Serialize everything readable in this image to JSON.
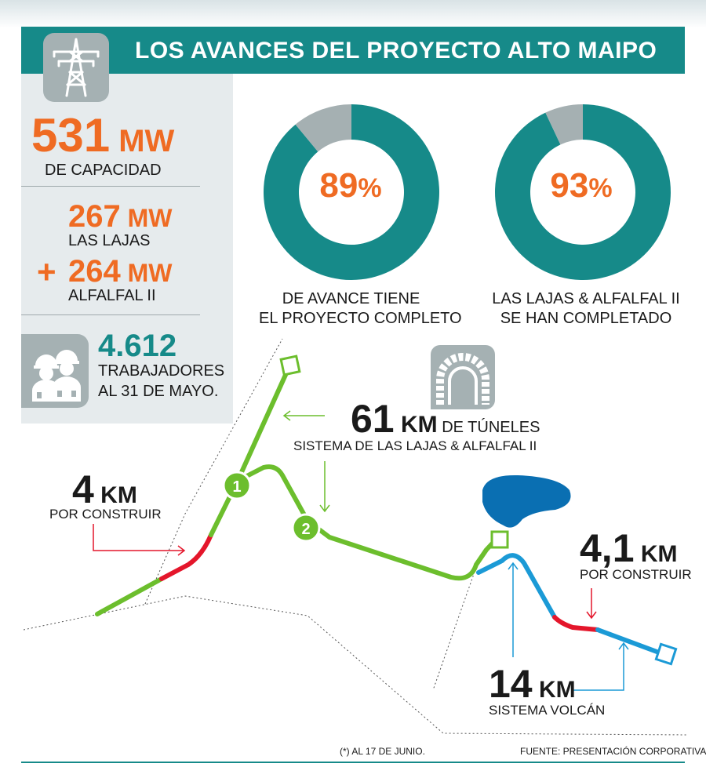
{
  "title": "LOS AVANCES DEL PROYECTO ALTO MAIPO",
  "capacity": {
    "value": "531",
    "unit": "MW",
    "label": "DE CAPACIDAD"
  },
  "las_lajas": {
    "value": "267",
    "unit": "MW",
    "label": "LAS LAJAS"
  },
  "plus_sign": "+",
  "alfalfal": {
    "value": "264",
    "unit": "MW",
    "label": "ALFALFAL II"
  },
  "workers": {
    "value": "4.612",
    "label1": "TRABAJADORES",
    "label2": "AL 31 DE MAYO."
  },
  "chart_data": [
    {
      "type": "pie",
      "values": [
        89,
        11
      ],
      "center_label": "89",
      "pct_sign": "%",
      "caption1": "DE AVANCE TIENE",
      "caption2": "EL PROYECTO COMPLETO",
      "colors": [
        "#168a89",
        "#a5b0b2"
      ]
    },
    {
      "type": "pie",
      "values": [
        93,
        7
      ],
      "center_label": "93",
      "pct_sign": "%",
      "caption1": "LAS LAJAS & ALFALFAL II",
      "caption2": "SE HAN COMPLETADO",
      "colors": [
        "#168a89",
        "#a5b0b2"
      ]
    }
  ],
  "tunnels": {
    "value": "61",
    "unit": "KM",
    "suffix": "DE TÚNELES",
    "label": "SISTEMA DE LAS LAJAS & ALFALFAL II"
  },
  "left_remaining": {
    "value": "4",
    "unit": "KM",
    "label": "POR CONSTRUIR"
  },
  "right_remaining": {
    "value": "4,1",
    "unit": "KM",
    "label": "POR CONSTRUIR"
  },
  "volcan": {
    "value": "14",
    "unit": "KM",
    "label": "SISTEMA VOLCÁN"
  },
  "markers": {
    "one": "1",
    "two": "2"
  },
  "footnote": "(*) AL 17 DE JUNIO.",
  "source": "FUENTE: PRESENTACIÓN CORPORATIVA",
  "colors": {
    "teal": "#168a89",
    "orange": "#ef6b23",
    "green": "#6cbe2d",
    "red": "#e4162b",
    "blue": "#1b9ad6",
    "lake": "#0a6fb2",
    "gray": "#a5b1b3"
  }
}
